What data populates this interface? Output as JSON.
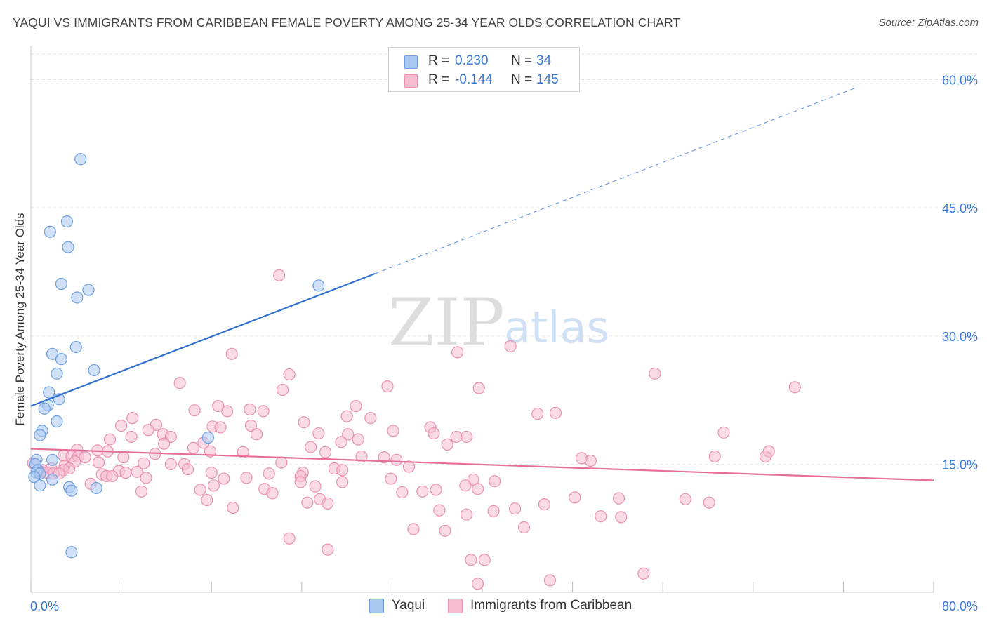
{
  "header": {
    "title": "YAQUI VS IMMIGRANTS FROM CARIBBEAN FEMALE POVERTY AMONG 25-34 YEAR OLDS CORRELATION CHART",
    "source": "Source: ZipAtlas.com"
  },
  "watermark": {
    "zip": "ZIP",
    "atlas": "atlas"
  },
  "legend": {
    "r_label": "R =",
    "n_label": "N =",
    "rows": [
      {
        "r": "0.230",
        "n": "34",
        "color": "#a9c8f0",
        "border": "#6d9fe0"
      },
      {
        "r": "-0.144",
        "n": "145",
        "color": "#f6bcd0",
        "border": "#e990b0"
      }
    ]
  },
  "chart_data": {
    "type": "scatter",
    "title": "YAQUI VS IMMIGRANTS FROM CARIBBEAN FEMALE POVERTY AMONG 25-34 YEAR OLDS CORRELATION CHART",
    "xlabel": "",
    "ylabel": "Female Poverty Among 25-34 Year Olds",
    "xlim": [
      0,
      80
    ],
    "ylim": [
      0,
      63
    ],
    "x_tick_labels": [
      "0.0%",
      "80.0%"
    ],
    "y_ticks": [
      15,
      30,
      45,
      60
    ],
    "y_tick_labels": [
      "15.0%",
      "30.0%",
      "45.0%",
      "60.0%"
    ],
    "grid": true,
    "legend_position": "top-center",
    "series": [
      {
        "name": "Yaqui",
        "color": "#a9c8f0",
        "edge": "#6d9fe0",
        "r": 0.23,
        "n": 34,
        "trend": {
          "x0": 0,
          "y0": 21.8,
          "x1": 30.5,
          "y1": 37.3,
          "dash_to_x": 73,
          "dash_to_y": 59
        },
        "points": [
          [
            4.4,
            50.7
          ],
          [
            3.2,
            43.4
          ],
          [
            1.7,
            42.2
          ],
          [
            3.3,
            40.4
          ],
          [
            2.7,
            36.1
          ],
          [
            5.1,
            35.4
          ],
          [
            4.1,
            34.5
          ],
          [
            25.5,
            35.9
          ],
          [
            4.0,
            28.7
          ],
          [
            1.9,
            27.9
          ],
          [
            2.7,
            27.3
          ],
          [
            5.6,
            26.0
          ],
          [
            2.3,
            25.6
          ],
          [
            1.6,
            23.4
          ],
          [
            2.5,
            22.6
          ],
          [
            1.5,
            21.9
          ],
          [
            1.2,
            21.5
          ],
          [
            2.3,
            20.0
          ],
          [
            1.0,
            18.9
          ],
          [
            0.8,
            18.4
          ],
          [
            15.7,
            18.1
          ],
          [
            0.5,
            15.5
          ],
          [
            1.9,
            15.5
          ],
          [
            0.4,
            15.0
          ],
          [
            0.6,
            14.3
          ],
          [
            0.5,
            14.0
          ],
          [
            0.8,
            13.9
          ],
          [
            0.3,
            13.5
          ],
          [
            1.9,
            13.2
          ],
          [
            0.8,
            12.5
          ],
          [
            3.4,
            12.3
          ],
          [
            5.8,
            12.2
          ],
          [
            3.6,
            11.9
          ],
          [
            3.6,
            4.7
          ]
        ]
      },
      {
        "name": "Immigrants from Caribbean",
        "color": "#f6bcd0",
        "edge": "#e990b0",
        "r": -0.144,
        "n": 145,
        "trend": {
          "x0": 0,
          "y0": 16.8,
          "x1": 80,
          "y1": 13.1
        },
        "points": [
          [
            22.0,
            37.1
          ],
          [
            42.5,
            28.8
          ],
          [
            37.8,
            28.1
          ],
          [
            17.8,
            27.9
          ],
          [
            55.3,
            25.6
          ],
          [
            22.9,
            25.5
          ],
          [
            13.2,
            24.5
          ],
          [
            31.6,
            24.1
          ],
          [
            39.7,
            23.9
          ],
          [
            67.7,
            24.0
          ],
          [
            22.3,
            23.7
          ],
          [
            28.8,
            21.8
          ],
          [
            16.6,
            21.8
          ],
          [
            14.5,
            21.3
          ],
          [
            19.4,
            21.4
          ],
          [
            20.6,
            21.2
          ],
          [
            17.4,
            21.2
          ],
          [
            44.9,
            20.9
          ],
          [
            46.5,
            21.0
          ],
          [
            28.0,
            20.6
          ],
          [
            30.1,
            20.4
          ],
          [
            9.0,
            20.4
          ],
          [
            24.2,
            19.9
          ],
          [
            8.0,
            19.5
          ],
          [
            11.1,
            19.6
          ],
          [
            16.1,
            19.4
          ],
          [
            16.8,
            19.3
          ],
          [
            19.5,
            19.5
          ],
          [
            35.4,
            19.3
          ],
          [
            10.4,
            19.0
          ],
          [
            32.1,
            18.9
          ],
          [
            20.0,
            18.5
          ],
          [
            25.5,
            18.6
          ],
          [
            28.1,
            18.5
          ],
          [
            35.7,
            18.6
          ],
          [
            61.4,
            18.7
          ],
          [
            11.7,
            18.5
          ],
          [
            12.4,
            18.2
          ],
          [
            8.9,
            18.2
          ],
          [
            7.0,
            17.9
          ],
          [
            29.0,
            17.9
          ],
          [
            37.7,
            18.2
          ],
          [
            38.6,
            18.2
          ],
          [
            27.5,
            17.6
          ],
          [
            36.9,
            17.3
          ],
          [
            15.3,
            17.5
          ],
          [
            11.8,
            17.4
          ],
          [
            24.8,
            17.0
          ],
          [
            14.4,
            16.9
          ],
          [
            4.1,
            16.7
          ],
          [
            5.9,
            16.6
          ],
          [
            6.8,
            16.5
          ],
          [
            15.9,
            16.5
          ],
          [
            18.8,
            16.4
          ],
          [
            26.1,
            16.4
          ],
          [
            65.4,
            16.5
          ],
          [
            11.0,
            16.2
          ],
          [
            2.9,
            16.0
          ],
          [
            3.6,
            15.9
          ],
          [
            4.2,
            15.9
          ],
          [
            4.8,
            15.8
          ],
          [
            8.2,
            15.8
          ],
          [
            29.3,
            15.9
          ],
          [
            31.3,
            15.8
          ],
          [
            32.4,
            15.5
          ],
          [
            60.6,
            15.9
          ],
          [
            65.1,
            15.9
          ],
          [
            48.8,
            15.7
          ],
          [
            49.6,
            15.4
          ],
          [
            0.2,
            15.1
          ],
          [
            3.9,
            15.3
          ],
          [
            6.0,
            15.2
          ],
          [
            10.0,
            15.1
          ],
          [
            12.4,
            15.0
          ],
          [
            13.6,
            15.0
          ],
          [
            22.2,
            15.2
          ],
          [
            33.5,
            14.7
          ],
          [
            3.0,
            14.8
          ],
          [
            3.4,
            14.5
          ],
          [
            1.8,
            14.5
          ],
          [
            2.9,
            14.3
          ],
          [
            1.0,
            14.3
          ],
          [
            0.9,
            14.1
          ],
          [
            1.4,
            14.0
          ],
          [
            2.0,
            13.9
          ],
          [
            2.5,
            13.9
          ],
          [
            7.8,
            14.2
          ],
          [
            13.9,
            14.4
          ],
          [
            26.9,
            14.5
          ],
          [
            27.6,
            14.3
          ],
          [
            8.4,
            14.0
          ],
          [
            9.4,
            14.1
          ],
          [
            16.0,
            14.0
          ],
          [
            21.1,
            13.9
          ],
          [
            24.1,
            14.0
          ],
          [
            23.9,
            13.6
          ],
          [
            6.3,
            13.8
          ],
          [
            6.7,
            13.6
          ],
          [
            7.2,
            13.6
          ],
          [
            10.2,
            13.4
          ],
          [
            17.1,
            13.3
          ],
          [
            19.1,
            13.4
          ],
          [
            31.9,
            13.3
          ],
          [
            39.2,
            13.2
          ],
          [
            41.1,
            13.0
          ],
          [
            27.6,
            12.9
          ],
          [
            5.3,
            12.7
          ],
          [
            23.9,
            12.9
          ],
          [
            16.2,
            12.5
          ],
          [
            38.5,
            12.5
          ],
          [
            25.2,
            12.4
          ],
          [
            15.0,
            12.0
          ],
          [
            20.7,
            12.1
          ],
          [
            39.6,
            12.1
          ],
          [
            35.9,
            12.0
          ],
          [
            34.7,
            11.8
          ],
          [
            32.9,
            11.7
          ],
          [
            9.8,
            11.8
          ],
          [
            21.4,
            11.6
          ],
          [
            48.2,
            11.1
          ],
          [
            52.1,
            11.0
          ],
          [
            45.5,
            10.3
          ],
          [
            25.6,
            10.9
          ],
          [
            15.6,
            10.8
          ],
          [
            24.5,
            10.5
          ],
          [
            26.3,
            10.4
          ],
          [
            17.9,
            9.9
          ],
          [
            36.2,
            9.6
          ],
          [
            42.9,
            9.8
          ],
          [
            41.0,
            9.5
          ],
          [
            38.6,
            9.1
          ],
          [
            50.5,
            8.9
          ],
          [
            52.3,
            8.8
          ],
          [
            58.0,
            10.9
          ],
          [
            60.1,
            10.5
          ],
          [
            36.7,
            7.2
          ],
          [
            43.7,
            7.6
          ],
          [
            33.9,
            7.4
          ],
          [
            26.3,
            5.0
          ],
          [
            22.9,
            6.3
          ],
          [
            39.0,
            3.8
          ],
          [
            40.2,
            3.8
          ],
          [
            54.3,
            2.2
          ],
          [
            39.6,
            1.0
          ],
          [
            46.0,
            1.4
          ]
        ]
      }
    ]
  }
}
